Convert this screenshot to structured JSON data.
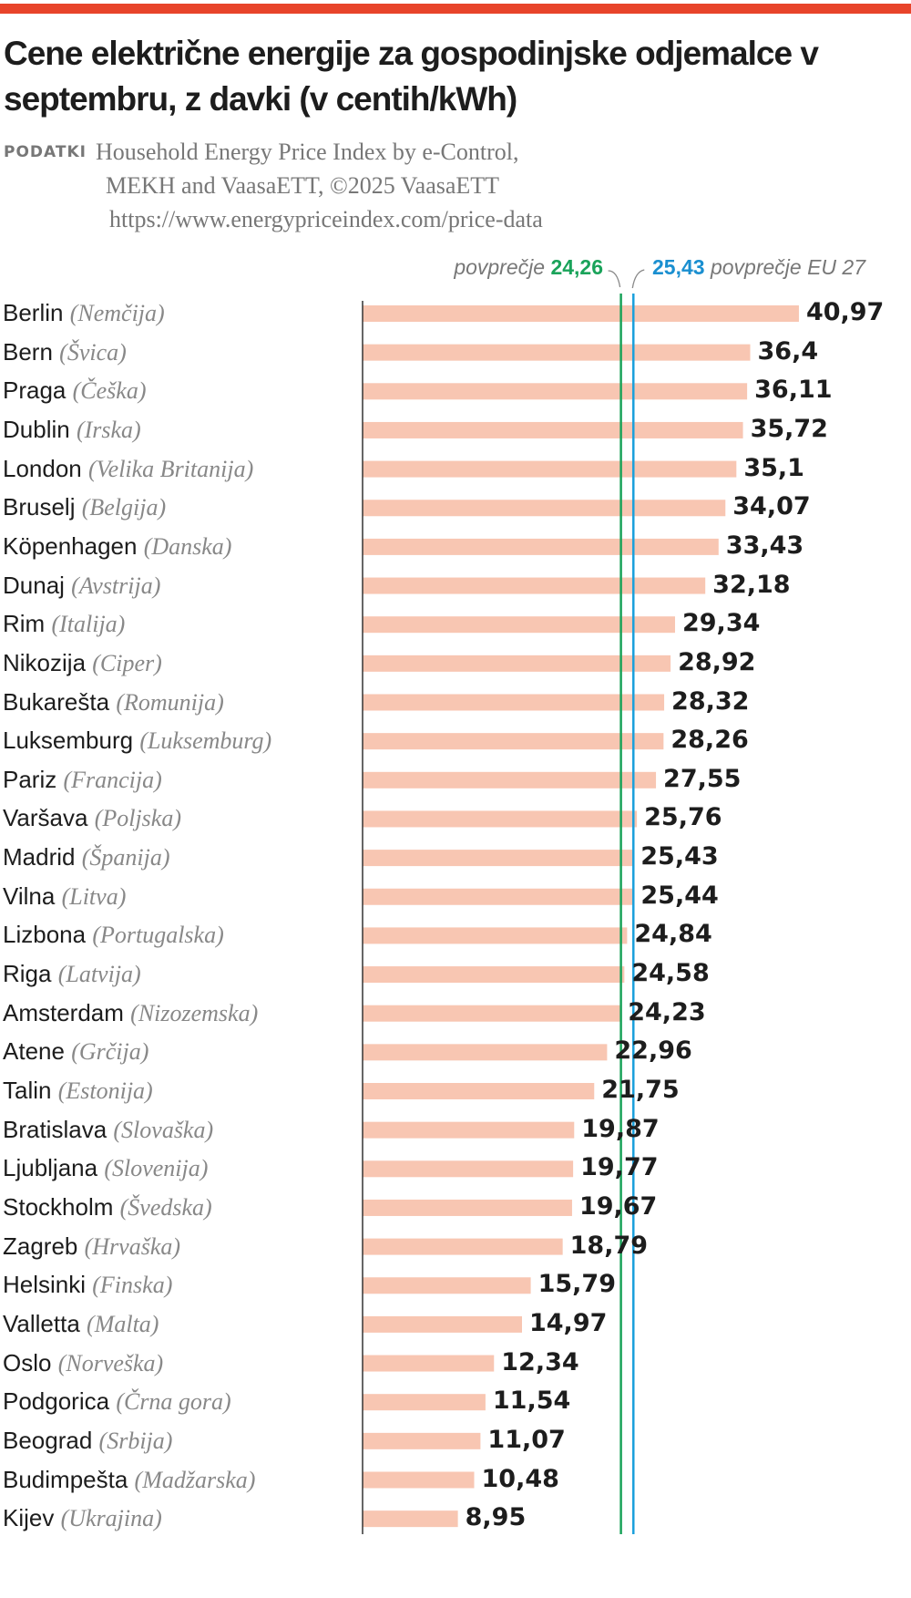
{
  "header": {
    "title": "Cene električne energije za gospodinjske odjemalce v septembru, z davki (v centih/kWh)",
    "source_label": "PODATKI",
    "source_line1": "Household Energy Price Index by e-Control,",
    "source_line2": "MEKH and VaasaETT, ©2025 VaasaETT",
    "source_line3": "https://www.energypriceindex.com/price-data"
  },
  "colors": {
    "accent": "#e8442a",
    "bar": "#f8c6b2",
    "average": "#1aa35a",
    "eu_average": "#1aa0dc"
  },
  "chart_data": {
    "type": "bar",
    "orientation": "horizontal",
    "xlim": [
      0,
      41
    ],
    "grid": false,
    "categories": [
      "Berlin",
      "Bern",
      "Praga",
      "Dublin",
      "London",
      "Bruselj",
      "Köpenhagen",
      "Dunaj",
      "Rim",
      "Nikozija",
      "Bukarešta",
      "Luksemburg",
      "Pariz",
      "Varšava",
      "Madrid",
      "Vilna",
      "Lizbona",
      "Riga",
      "Amsterdam",
      "Atene",
      "Talin",
      "Bratislava",
      "Ljubljana",
      "Stockholm",
      "Zagreb",
      "Helsinki",
      "Valletta",
      "Oslo",
      "Podgorica",
      "Beograd",
      "Budimpešta",
      "Kijev"
    ],
    "countries": [
      "(Nemčija)",
      "(Švica)",
      "(Češka)",
      "(Irska)",
      "(Velika Britanija)",
      "(Belgija)",
      "(Danska)",
      "(Avstrija)",
      "(Italija)",
      "(Ciper)",
      "(Romunija)",
      "(Luksemburg)",
      "(Francija)",
      "(Poljska)",
      "(Španija)",
      "(Litva)",
      "(Portugalska)",
      "(Latvija)",
      "(Nizozemska)",
      "(Grčija)",
      "(Estonija)",
      "(Slovaška)",
      "(Slovenija)",
      "(Švedska)",
      "(Hrvaška)",
      "(Finska)",
      "(Malta)",
      "(Norveška)",
      "(Črna gora)",
      "(Srbija)",
      "(Madžarska)",
      "(Ukrajina)"
    ],
    "values": [
      40.97,
      36.4,
      36.11,
      35.72,
      35.1,
      34.07,
      33.43,
      32.18,
      29.34,
      28.92,
      28.32,
      28.26,
      27.55,
      25.76,
      25.43,
      25.44,
      24.84,
      24.58,
      24.23,
      22.96,
      21.75,
      19.87,
      19.77,
      19.67,
      18.79,
      15.79,
      14.97,
      12.34,
      11.54,
      11.07,
      10.48,
      8.95
    ],
    "value_labels": [
      "40,97",
      "36,4",
      "36,11",
      "35,72",
      "35,1",
      "34,07",
      "33,43",
      "32,18",
      "29,34",
      "28,92",
      "28,32",
      "28,26",
      "27,55",
      "25,76",
      "25,43",
      "25,44",
      "24,84",
      "24,58",
      "24,23",
      "22,96",
      "21,75",
      "19,87",
      "19,77",
      "19,67",
      "18,79",
      "15,79",
      "14,97",
      "12,34",
      "11,54",
      "11,07",
      "10,48",
      "8,95"
    ],
    "reference_lines": [
      {
        "label": "povprečje",
        "value": 24.26,
        "value_label": "24,26"
      },
      {
        "label": "povprečje EU 27",
        "value": 25.43,
        "value_label": "25,43"
      }
    ]
  }
}
